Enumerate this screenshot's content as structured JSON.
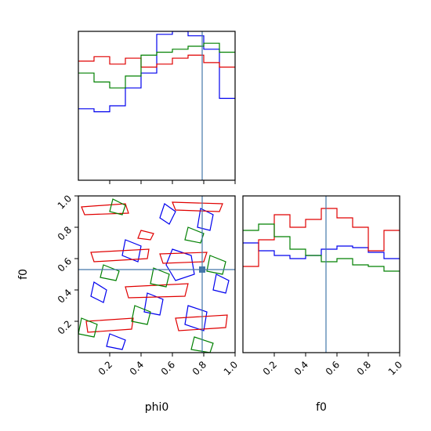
{
  "chart_data": {
    "type": "corner",
    "parameters": [
      "phi0",
      "f0"
    ],
    "axis_range": [
      0,
      1
    ],
    "tick_values": [
      0.2,
      0.4,
      0.6,
      0.8,
      1.0
    ],
    "tick_labels": [
      "0.2",
      "0.4",
      "0.6",
      "0.8",
      "1.0"
    ],
    "truth": {
      "phi0": 0.79,
      "f0": 0.53,
      "color": "#4477aa"
    },
    "histograms": {
      "phi0": {
        "bin_edges": [
          0,
          0.1,
          0.2,
          0.3,
          0.4,
          0.5,
          0.6,
          0.7,
          0.8,
          0.9,
          1.0
        ],
        "series": [
          {
            "color": "#0000ee",
            "values": [
              0.48,
              0.46,
              0.5,
              0.62,
              0.72,
              0.98,
              1.0,
              0.97,
              0.88,
              0.55
            ]
          },
          {
            "color": "#e00000",
            "values": [
              0.8,
              0.83,
              0.78,
              0.82,
              0.76,
              0.78,
              0.82,
              0.84,
              0.79,
              0.76
            ]
          },
          {
            "color": "#008000",
            "values": [
              0.72,
              0.66,
              0.62,
              0.7,
              0.84,
              0.86,
              0.88,
              0.9,
              0.92,
              0.86
            ]
          }
        ]
      },
      "f0": {
        "bin_edges": [
          0,
          0.1,
          0.2,
          0.3,
          0.4,
          0.5,
          0.6,
          0.7,
          0.8,
          0.9,
          1.0
        ],
        "series": [
          {
            "color": "#0000ee",
            "values": [
              0.7,
              0.65,
              0.62,
              0.6,
              0.62,
              0.66,
              0.68,
              0.67,
              0.64,
              0.6
            ]
          },
          {
            "color": "#e00000",
            "values": [
              0.55,
              0.72,
              0.88,
              0.8,
              0.85,
              0.92,
              0.86,
              0.8,
              0.65,
              0.78
            ]
          },
          {
            "color": "#008000",
            "values": [
              0.78,
              0.82,
              0.74,
              0.66,
              0.62,
              0.58,
              0.6,
              0.56,
              0.55,
              0.52
            ]
          }
        ]
      }
    },
    "contours_2d": {
      "x": "phi0",
      "y": "f0",
      "series": [
        {
          "color": "#0000ee",
          "loops": [
            [
              [
                0.55,
                0.95
              ],
              [
                0.62,
                0.9
              ],
              [
                0.58,
                0.82
              ],
              [
                0.52,
                0.86
              ]
            ],
            [
              [
                0.3,
                0.72
              ],
              [
                0.4,
                0.68
              ],
              [
                0.38,
                0.58
              ],
              [
                0.28,
                0.62
              ]
            ],
            [
              [
                0.6,
                0.66
              ],
              [
                0.72,
                0.62
              ],
              [
                0.74,
                0.5
              ],
              [
                0.62,
                0.46
              ],
              [
                0.56,
                0.56
              ]
            ],
            [
              [
                0.78,
                0.92
              ],
              [
                0.86,
                0.88
              ],
              [
                0.84,
                0.78
              ],
              [
                0.76,
                0.8
              ]
            ],
            [
              [
                0.1,
                0.45
              ],
              [
                0.18,
                0.4
              ],
              [
                0.16,
                0.32
              ],
              [
                0.08,
                0.36
              ]
            ],
            [
              [
                0.44,
                0.38
              ],
              [
                0.54,
                0.34
              ],
              [
                0.52,
                0.24
              ],
              [
                0.42,
                0.26
              ]
            ],
            [
              [
                0.7,
                0.3
              ],
              [
                0.82,
                0.26
              ],
              [
                0.8,
                0.14
              ],
              [
                0.68,
                0.18
              ]
            ],
            [
              [
                0.2,
                0.12
              ],
              [
                0.3,
                0.08
              ],
              [
                0.28,
                0.02
              ],
              [
                0.18,
                0.04
              ]
            ],
            [
              [
                0.88,
                0.5
              ],
              [
                0.96,
                0.46
              ],
              [
                0.94,
                0.38
              ],
              [
                0.86,
                0.4
              ]
            ]
          ]
        },
        {
          "color": "#e00000",
          "loops": [
            [
              [
                0.02,
                0.93
              ],
              [
                0.3,
                0.95
              ],
              [
                0.32,
                0.89
              ],
              [
                0.04,
                0.88
              ]
            ],
            [
              [
                0.6,
                0.96
              ],
              [
                0.92,
                0.95
              ],
              [
                0.9,
                0.9
              ],
              [
                0.62,
                0.91
              ]
            ],
            [
              [
                0.08,
                0.64
              ],
              [
                0.45,
                0.66
              ],
              [
                0.44,
                0.6
              ],
              [
                0.1,
                0.58
              ]
            ],
            [
              [
                0.52,
                0.63
              ],
              [
                0.82,
                0.64
              ],
              [
                0.8,
                0.58
              ],
              [
                0.54,
                0.57
              ]
            ],
            [
              [
                0.3,
                0.42
              ],
              [
                0.7,
                0.44
              ],
              [
                0.68,
                0.36
              ],
              [
                0.32,
                0.35
              ]
            ],
            [
              [
                0.05,
                0.2
              ],
              [
                0.35,
                0.22
              ],
              [
                0.34,
                0.15
              ],
              [
                0.06,
                0.13
              ]
            ],
            [
              [
                0.62,
                0.22
              ],
              [
                0.95,
                0.24
              ],
              [
                0.94,
                0.16
              ],
              [
                0.64,
                0.14
              ]
            ],
            [
              [
                0.4,
                0.78
              ],
              [
                0.48,
                0.76
              ],
              [
                0.46,
                0.72
              ],
              [
                0.38,
                0.73
              ]
            ]
          ]
        },
        {
          "color": "#008000",
          "loops": [
            [
              [
                0.22,
                0.98
              ],
              [
                0.3,
                0.94
              ],
              [
                0.28,
                0.88
              ],
              [
                0.2,
                0.9
              ]
            ],
            [
              [
                0.7,
                0.8
              ],
              [
                0.8,
                0.76
              ],
              [
                0.78,
                0.7
              ],
              [
                0.68,
                0.72
              ]
            ],
            [
              [
                0.16,
                0.56
              ],
              [
                0.26,
                0.52
              ],
              [
                0.24,
                0.46
              ],
              [
                0.14,
                0.48
              ]
            ],
            [
              [
                0.48,
                0.54
              ],
              [
                0.58,
                0.5
              ],
              [
                0.56,
                0.42
              ],
              [
                0.46,
                0.44
              ]
            ],
            [
              [
                0.84,
                0.62
              ],
              [
                0.94,
                0.58
              ],
              [
                0.92,
                0.5
              ],
              [
                0.82,
                0.52
              ]
            ],
            [
              [
                0.02,
                0.22
              ],
              [
                0.12,
                0.18
              ],
              [
                0.1,
                0.1
              ],
              [
                0.0,
                0.12
              ]
            ],
            [
              [
                0.36,
                0.3
              ],
              [
                0.46,
                0.26
              ],
              [
                0.44,
                0.18
              ],
              [
                0.34,
                0.2
              ]
            ],
            [
              [
                0.74,
                0.1
              ],
              [
                0.86,
                0.06
              ],
              [
                0.84,
                0.0
              ],
              [
                0.72,
                0.02
              ]
            ]
          ]
        }
      ]
    },
    "xlabels": {
      "phi0": "phi0",
      "f0": "f0"
    },
    "ylabels": {
      "f0": "f0"
    }
  }
}
